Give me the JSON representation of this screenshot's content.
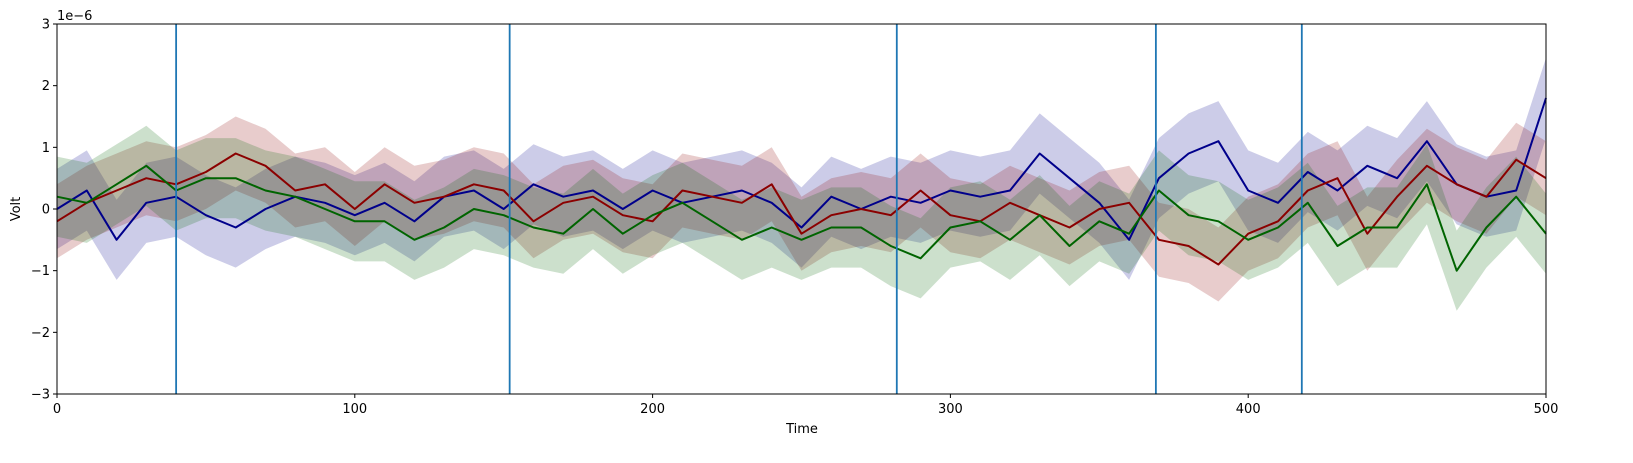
{
  "chart_data": {
    "type": "line",
    "xlabel": "Time",
    "ylabel": "Volt",
    "offset_text": "1e−6",
    "xlim": [
      0,
      500
    ],
    "ylim": [
      -3,
      3
    ],
    "xticks": [
      0,
      100,
      200,
      300,
      400,
      500
    ],
    "yticks": [
      -3,
      -2,
      -1,
      0,
      1,
      2,
      3
    ],
    "xtick_labels": [
      "0",
      "100",
      "200",
      "300",
      "400",
      "500"
    ],
    "ytick_labels": [
      "−3",
      "−2",
      "−1",
      "0",
      "1",
      "2",
      "3"
    ],
    "vertical_lines": {
      "x": [
        40,
        152,
        282,
        369,
        418
      ],
      "color": "#1f77b4"
    },
    "grid": false,
    "series": [
      {
        "color": "#00008b",
        "band_alpha": 0.2,
        "band_halfwidth": 0.65,
        "x": [
          0,
          10,
          20,
          30,
          40,
          50,
          60,
          70,
          80,
          90,
          100,
          110,
          120,
          130,
          140,
          150,
          160,
          170,
          180,
          190,
          200,
          210,
          220,
          230,
          240,
          250,
          260,
          270,
          280,
          290,
          300,
          310,
          320,
          330,
          340,
          350,
          360,
          370,
          380,
          390,
          400,
          410,
          420,
          430,
          440,
          450,
          460,
          470,
          480,
          490,
          500
        ],
        "y": [
          0.0,
          0.3,
          -0.5,
          0.1,
          0.2,
          -0.1,
          -0.3,
          0.0,
          0.2,
          0.1,
          -0.1,
          0.1,
          -0.2,
          0.2,
          0.3,
          0.0,
          0.4,
          0.2,
          0.3,
          0.0,
          0.3,
          0.1,
          0.2,
          0.3,
          0.1,
          -0.3,
          0.2,
          0.0,
          0.2,
          0.1,
          0.3,
          0.2,
          0.3,
          0.9,
          0.5,
          0.1,
          -0.5,
          0.5,
          0.9,
          1.1,
          0.3,
          0.1,
          0.6,
          0.3,
          0.7,
          0.5,
          1.1,
          0.4,
          0.2,
          0.3,
          1.8
        ]
      },
      {
        "color": "#8b0000",
        "band_alpha": 0.2,
        "band_halfwidth": 0.6,
        "x": [
          0,
          10,
          20,
          30,
          40,
          50,
          60,
          70,
          80,
          90,
          100,
          110,
          120,
          130,
          140,
          150,
          160,
          170,
          180,
          190,
          200,
          210,
          220,
          230,
          240,
          250,
          260,
          270,
          280,
          290,
          300,
          310,
          320,
          330,
          340,
          350,
          360,
          370,
          380,
          390,
          400,
          410,
          420,
          430,
          440,
          450,
          460,
          470,
          480,
          490,
          500
        ],
        "y": [
          -0.2,
          0.1,
          0.3,
          0.5,
          0.4,
          0.6,
          0.9,
          0.7,
          0.3,
          0.4,
          0.0,
          0.4,
          0.1,
          0.2,
          0.4,
          0.3,
          -0.2,
          0.1,
          0.2,
          -0.1,
          -0.2,
          0.3,
          0.2,
          0.1,
          0.4,
          -0.4,
          -0.1,
          0.0,
          -0.1,
          0.3,
          -0.1,
          -0.2,
          0.1,
          -0.1,
          -0.3,
          0.0,
          0.1,
          -0.5,
          -0.6,
          -0.9,
          -0.4,
          -0.2,
          0.3,
          0.5,
          -0.4,
          0.2,
          0.7,
          0.4,
          0.2,
          0.8,
          0.5
        ]
      },
      {
        "color": "#006400",
        "band_alpha": 0.2,
        "band_halfwidth": 0.65,
        "x": [
          0,
          10,
          20,
          30,
          40,
          50,
          60,
          70,
          80,
          90,
          100,
          110,
          120,
          130,
          140,
          150,
          160,
          170,
          180,
          190,
          200,
          210,
          220,
          230,
          240,
          250,
          260,
          270,
          280,
          290,
          300,
          310,
          320,
          330,
          340,
          350,
          360,
          370,
          380,
          390,
          400,
          410,
          420,
          430,
          440,
          450,
          460,
          470,
          480,
          490,
          500
        ],
        "y": [
          0.2,
          0.1,
          0.4,
          0.7,
          0.3,
          0.5,
          0.5,
          0.3,
          0.2,
          0.0,
          -0.2,
          -0.2,
          -0.5,
          -0.3,
          0.0,
          -0.1,
          -0.3,
          -0.4,
          0.0,
          -0.4,
          -0.1,
          0.1,
          -0.2,
          -0.5,
          -0.3,
          -0.5,
          -0.3,
          -0.3,
          -0.6,
          -0.8,
          -0.3,
          -0.2,
          -0.5,
          -0.1,
          -0.6,
          -0.2,
          -0.4,
          0.3,
          -0.1,
          -0.2,
          -0.5,
          -0.3,
          0.1,
          -0.6,
          -0.3,
          -0.3,
          0.4,
          -1.0,
          -0.3,
          0.2,
          -0.4
        ]
      }
    ]
  }
}
